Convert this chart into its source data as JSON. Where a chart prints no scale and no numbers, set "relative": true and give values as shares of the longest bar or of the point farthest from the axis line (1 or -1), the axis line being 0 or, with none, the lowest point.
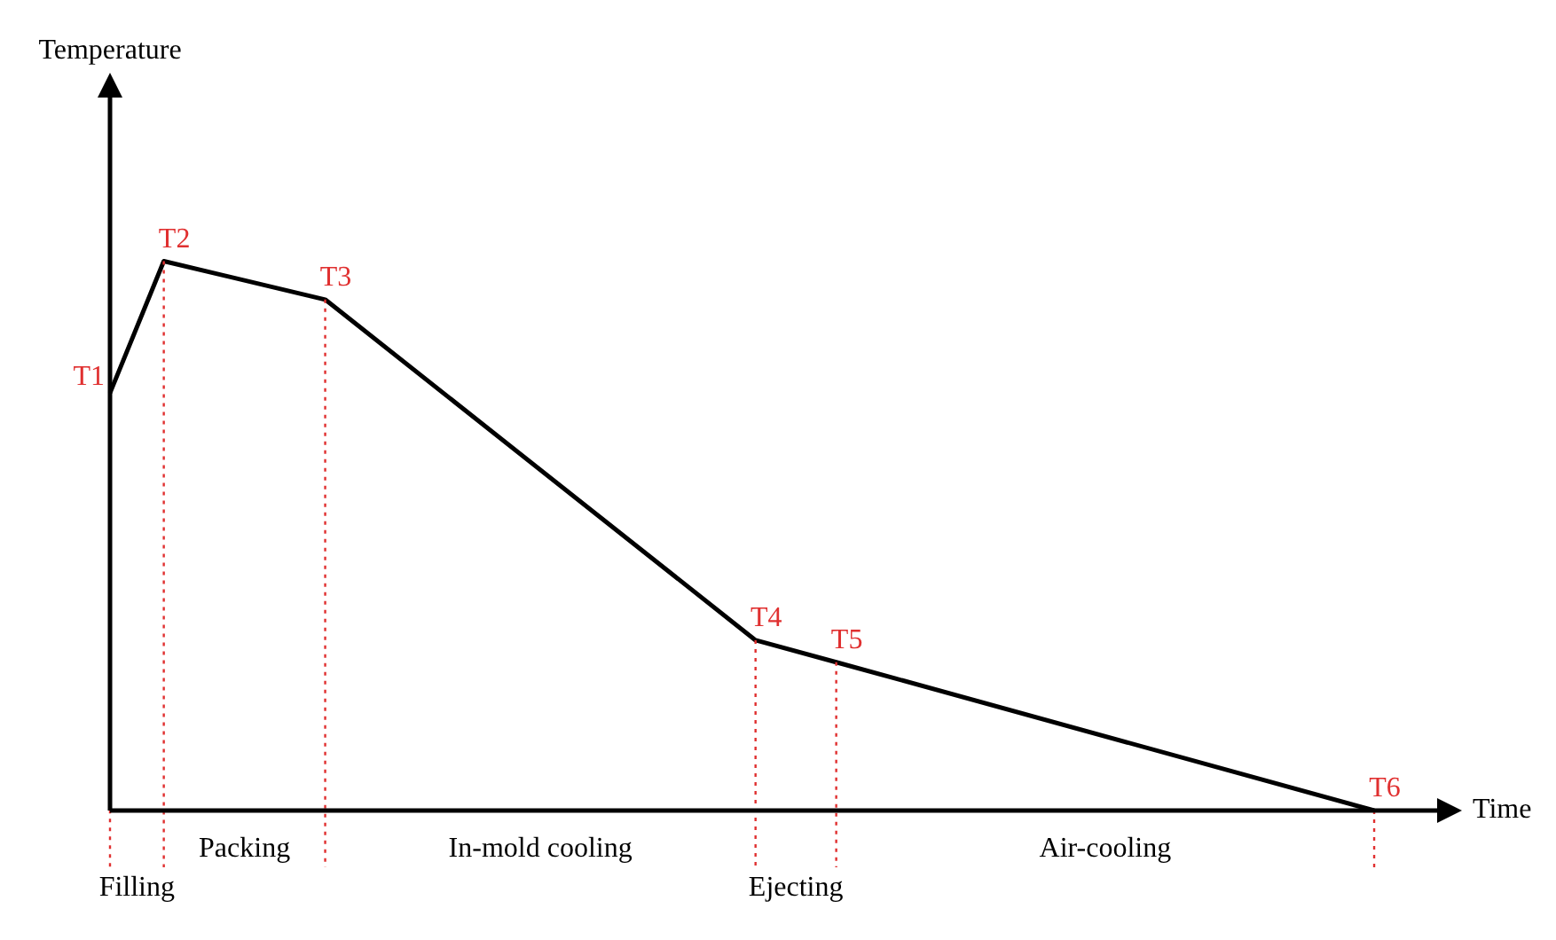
{
  "chart_data": {
    "type": "line",
    "xlabel": "Time",
    "relative": true,
    "tick_labels": false,
    "legend": false,
    "marker": "none",
    "line_style": "solid",
    "categories": [
      null,
      null,
      null,
      null,
      null,
      null,
      null,
      null,
      null,
      null,
      null,
      null,
      null,
      null,
      null,
      null,
      null,
      null,
      null,
      null,
      null,
      null,
      null,
      null,
      null,
      null,
      null,
      null,
      null,
      null,
      null,
      null,
      null,
      null,
      null,
      null,
      null,
      null,
      null,
      null,
      null,
      null,
      null,
      null,
      null,
      null,
      null,
      null,
      null,
      null,
      null
    ],
    "series": [
      {
        "color": "#000000",
        "values": [
          0.76,
          null,
          1,
          null,
          null,
          null,
          null,
          null,
          0.93,
          null,
          null,
          null,
          null,
          null,
          null,
          null,
          null,
          null,
          null,
          null,
          null,
          null,
          null,
          null,
          0.31,
          null,
          null,
          0.27,
          null,
          null,
          null,
          null,
          null,
          null,
          null,
          null,
          null,
          null,
          null,
          null,
          null,
          null,
          null,
          null,
          null,
          null,
          null,
          0,
          null,
          null,
          null
        ]
      }
    ],
    "annotations": [
      "T1",
      "T2",
      "T3",
      "T4",
      "T5",
      "T6",
      "Filling",
      "Packing",
      "In-mold cooling",
      "Ejecting",
      "Air-cooling",
      "Temperature"
    ]
  }
}
